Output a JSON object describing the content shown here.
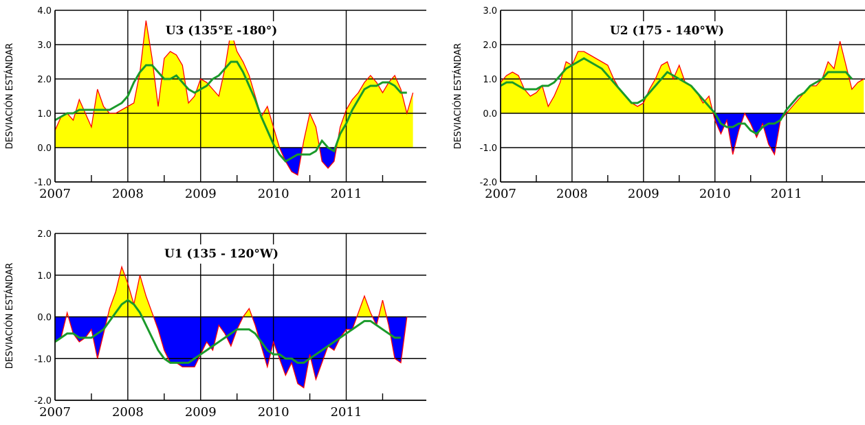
{
  "chart_data": [
    {
      "type": "area",
      "title": "U3 (135°E -180°)",
      "ylabel": "DESVIACIÓN ESTÁNDAR",
      "ylim": [
        -1.0,
        4.0
      ],
      "yticks": [
        "-1.0",
        "0.0",
        "1.0",
        "2.0",
        "3.0",
        "4.0"
      ],
      "xlim": [
        2007,
        2012.1
      ],
      "xticks": [
        "2007",
        "2008",
        "2009",
        "2010",
        "2011"
      ],
      "grid": true,
      "colors": {
        "positive": "#ffff00",
        "negative": "#0000ff",
        "monthly": "#ff0000",
        "smoothed": "#1a9a2a"
      },
      "series": [
        {
          "values": [
            0.5,
            0.9,
            1.0,
            0.8,
            1.4,
            1.0,
            0.6,
            1.7,
            1.2,
            1.0,
            1.0,
            1.1,
            1.2,
            1.3,
            2.2,
            3.7,
            2.6,
            1.2,
            2.6,
            2.8,
            2.7,
            2.4,
            1.3,
            1.5,
            2.0,
            1.9,
            1.7,
            1.5,
            2.3,
            3.4,
            2.8,
            2.5,
            2.1,
            1.5,
            0.9,
            1.2,
            0.6,
            0.0,
            -0.4,
            -0.7,
            -0.8,
            0.2,
            1.0,
            0.6,
            -0.4,
            -0.6,
            -0.4,
            0.6,
            1.1,
            1.4,
            1.6,
            1.9,
            2.1,
            1.9,
            1.6,
            1.9,
            2.1,
            1.7,
            1.0,
            1.6
          ]
        },
        {
          "values": [
            0.8,
            0.9,
            1.0,
            1.0,
            1.1,
            1.1,
            1.1,
            1.1,
            1.1,
            1.1,
            1.2,
            1.3,
            1.5,
            1.9,
            2.2,
            2.4,
            2.4,
            2.2,
            2.0,
            2.0,
            2.1,
            1.9,
            1.7,
            1.6,
            1.7,
            1.8,
            2.0,
            2.1,
            2.3,
            2.5,
            2.5,
            2.2,
            1.8,
            1.4,
            0.9,
            0.5,
            0.1,
            -0.2,
            -0.4,
            -0.3,
            -0.2,
            -0.2,
            -0.2,
            -0.1,
            0.2,
            0.0,
            -0.1,
            0.4,
            0.7,
            1.1,
            1.4,
            1.7,
            1.8,
            1.8,
            1.9,
            1.9,
            1.8,
            1.6,
            1.6
          ]
        }
      ]
    },
    {
      "type": "area",
      "title": "U2 (175 - 140°W)",
      "ylabel": "DESVIACIÓN ESTÁNDAR",
      "ylim": [
        -2.0,
        3.0
      ],
      "yticks": [
        "-2.0",
        "-1.0",
        "0.0",
        "1.0",
        "2.0",
        "3.0"
      ],
      "xlim": [
        2007,
        2012.1
      ],
      "xticks": [
        "2007",
        "2008",
        "2009",
        "2010",
        "2011"
      ],
      "grid": true,
      "colors": {
        "positive": "#ffff00",
        "negative": "#0000ff",
        "monthly": "#ff0000",
        "smoothed": "#1a9a2a"
      },
      "series": [
        {
          "values": [
            0.9,
            1.1,
            1.2,
            1.1,
            0.7,
            0.5,
            0.6,
            0.8,
            0.2,
            0.5,
            0.9,
            1.5,
            1.4,
            1.8,
            1.8,
            1.7,
            1.6,
            1.5,
            1.4,
            1.0,
            0.7,
            0.5,
            0.3,
            0.2,
            0.3,
            0.7,
            1.0,
            1.4,
            1.5,
            1.0,
            1.4,
            0.9,
            0.8,
            0.6,
            0.3,
            0.5,
            -0.2,
            -0.6,
            -0.2,
            -1.2,
            -0.5,
            0.0,
            -0.3,
            -0.7,
            -0.3,
            -0.9,
            -1.2,
            -0.2,
            0.0,
            0.2,
            0.4,
            0.6,
            0.8,
            0.8,
            1.0,
            1.5,
            1.3,
            2.1,
            1.4,
            0.7,
            0.9,
            1.0
          ]
        },
        {
          "values": [
            0.8,
            0.9,
            0.9,
            0.8,
            0.7,
            0.7,
            0.7,
            0.8,
            0.8,
            0.9,
            1.1,
            1.3,
            1.4,
            1.5,
            1.6,
            1.5,
            1.4,
            1.3,
            1.1,
            0.9,
            0.7,
            0.5,
            0.3,
            0.3,
            0.4,
            0.6,
            0.8,
            1.0,
            1.2,
            1.1,
            1.0,
            0.9,
            0.8,
            0.6,
            0.4,
            0.2,
            0.0,
            -0.3,
            -0.4,
            -0.4,
            -0.3,
            -0.3,
            -0.5,
            -0.6,
            -0.4,
            -0.3,
            -0.3,
            -0.2,
            0.1,
            0.3,
            0.5,
            0.6,
            0.8,
            0.9,
            1.0,
            1.2,
            1.2,
            1.2,
            1.2,
            1.0
          ]
        }
      ]
    },
    {
      "type": "area",
      "title": "U1 (135 - 120°W)",
      "ylabel": "DESVIACIÓN ESTÁNDAR",
      "ylim": [
        -2.0,
        2.0
      ],
      "yticks": [
        "-2.0",
        "-1.0",
        "0.0",
        "1.0",
        "2.0"
      ],
      "xlim": [
        2007,
        2012.1
      ],
      "xticks": [
        "2007",
        "2008",
        "2009",
        "2010",
        "2011"
      ],
      "grid": true,
      "colors": {
        "positive": "#ffff00",
        "negative": "#0000ff",
        "monthly": "#ff0000",
        "smoothed": "#1a9a2a"
      },
      "series": [
        {
          "values": [
            -0.6,
            -0.5,
            0.1,
            -0.4,
            -0.6,
            -0.5,
            -0.3,
            -1.0,
            -0.4,
            0.2,
            0.6,
            1.2,
            0.8,
            0.3,
            1.0,
            0.5,
            0.1,
            -0.3,
            -0.8,
            -1.1,
            -1.1,
            -1.2,
            -1.2,
            -1.2,
            -0.9,
            -0.6,
            -0.8,
            -0.2,
            -0.4,
            -0.7,
            -0.3,
            0.0,
            0.2,
            -0.2,
            -0.7,
            -1.2,
            -0.6,
            -1.0,
            -1.4,
            -1.1,
            -1.6,
            -1.7,
            -0.9,
            -1.5,
            -1.1,
            -0.7,
            -0.8,
            -0.5,
            -0.3,
            -0.3,
            0.1,
            0.5,
            0.1,
            -0.2,
            0.4,
            -0.2,
            -1.0,
            -1.1,
            0.0
          ]
        },
        {
          "values": [
            -0.6,
            -0.5,
            -0.4,
            -0.4,
            -0.5,
            -0.5,
            -0.5,
            -0.4,
            -0.3,
            -0.1,
            0.1,
            0.3,
            0.4,
            0.3,
            0.1,
            -0.2,
            -0.5,
            -0.8,
            -1.0,
            -1.1,
            -1.1,
            -1.1,
            -1.1,
            -1.0,
            -0.9,
            -0.8,
            -0.7,
            -0.6,
            -0.5,
            -0.4,
            -0.3,
            -0.3,
            -0.3,
            -0.4,
            -0.6,
            -0.8,
            -0.9,
            -0.9,
            -1.0,
            -1.0,
            -1.1,
            -1.1,
            -1.0,
            -0.9,
            -0.8,
            -0.7,
            -0.6,
            -0.5,
            -0.4,
            -0.3,
            -0.2,
            -0.1,
            -0.1,
            -0.2,
            -0.3,
            -0.4,
            -0.5,
            -0.5
          ]
        }
      ]
    }
  ]
}
